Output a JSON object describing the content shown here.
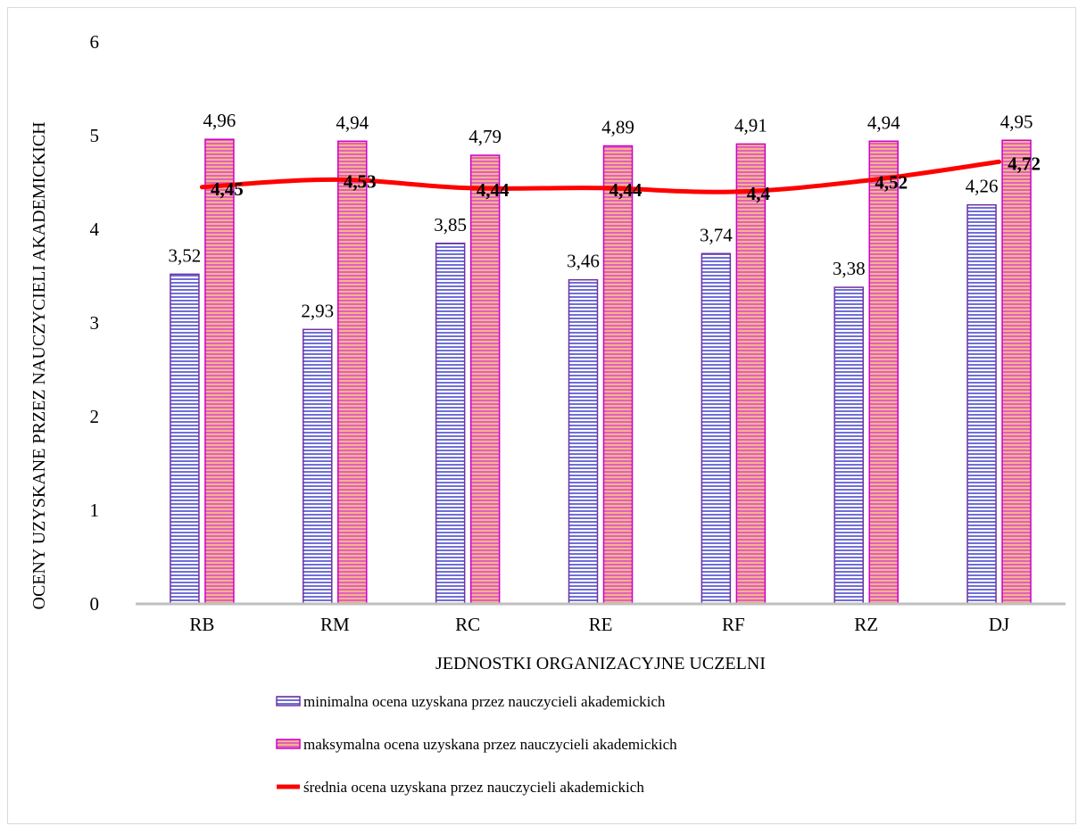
{
  "chart_data": {
    "type": "bar",
    "categories": [
      "RB",
      "RM",
      "RC",
      "RE",
      "RF",
      "RZ",
      "DJ"
    ],
    "series": [
      {
        "name": "minimalna ocena uzyskana przez nauczycieli akademickich",
        "kind": "bar",
        "values": [
          3.52,
          2.93,
          3.85,
          3.46,
          3.74,
          3.38,
          4.26
        ],
        "labels": [
          "3,52",
          "2,93",
          "3,85",
          "3,46",
          "3,74",
          "3,38",
          "4,26"
        ],
        "color": "#6f6fd8",
        "stroke": "#7030a0"
      },
      {
        "name": "maksymalna ocena uzyskana przez nauczycieli akademickich",
        "kind": "bar",
        "values": [
          4.96,
          4.94,
          4.79,
          4.89,
          4.91,
          4.94,
          4.95
        ],
        "labels": [
          "4,96",
          "4,94",
          "4,79",
          "4,89",
          "4,91",
          "4,94",
          "4,95"
        ],
        "color": "#e060c0",
        "stroke": "#cc00cc"
      },
      {
        "name": "średnia ocena uzyskana przez nauczycieli akademickich",
        "kind": "line",
        "values": [
          4.45,
          4.53,
          4.44,
          4.44,
          4.4,
          4.52,
          4.72
        ],
        "labels": [
          "4,45",
          "4,53",
          "4,44",
          "4,44",
          "4,4",
          "4,52",
          "4,72"
        ],
        "color": "#ff0000"
      }
    ],
    "xlabel": "JEDNOSTKI ORGANIZACYJNE UCZELNI",
    "ylabel": "OCENY UZYSKANE PRZEZ NAUCZYCIELI AKADEMICKICH",
    "ylim": [
      0,
      6
    ],
    "yticks": [
      "0",
      "1",
      "2",
      "3",
      "4",
      "5",
      "6"
    ],
    "grid": false,
    "legend_position": "bottom"
  }
}
